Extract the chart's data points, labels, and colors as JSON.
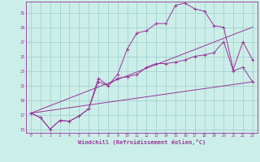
{
  "xlabel": "Windchill (Refroidissement éolien,°C)",
  "xlim": [
    -0.5,
    23.5
  ],
  "ylim": [
    14.5,
    32.5
  ],
  "xticks": [
    0,
    1,
    2,
    3,
    4,
    5,
    6,
    7,
    8,
    9,
    10,
    11,
    12,
    13,
    14,
    15,
    16,
    17,
    18,
    19,
    20,
    21,
    22,
    23
  ],
  "yticks": [
    15,
    17,
    19,
    21,
    23,
    25,
    27,
    29,
    31
  ],
  "bg_color": "#cceee8",
  "line_color": "#993399",
  "grid_color": "#99cccc",
  "line1_x": [
    0,
    1,
    2,
    3,
    4,
    5,
    6,
    7,
    8,
    9,
    10,
    11,
    12,
    13,
    14,
    15,
    16,
    17,
    18,
    19,
    20,
    21,
    22,
    23
  ],
  "line1_y": [
    17.2,
    16.6,
    15.0,
    16.2,
    16.1,
    16.8,
    17.8,
    21.5,
    21.0,
    22.5,
    26.0,
    28.2,
    28.5,
    29.5,
    29.5,
    32.0,
    32.3,
    31.5,
    31.2,
    29.2,
    29.0,
    23.2,
    27.0,
    24.5
  ],
  "line2_x": [
    0,
    1,
    2,
    3,
    4,
    5,
    6,
    7,
    8,
    9,
    10,
    11,
    12,
    13,
    14,
    15,
    16,
    17,
    18,
    19,
    20,
    21,
    22,
    23
  ],
  "line2_y": [
    17.2,
    16.6,
    15.0,
    16.2,
    16.1,
    16.8,
    17.8,
    22.0,
    21.0,
    22.0,
    22.2,
    22.5,
    23.5,
    24.0,
    24.0,
    24.2,
    24.5,
    25.0,
    25.2,
    25.5,
    27.0,
    23.0,
    23.5,
    21.5
  ],
  "line3_x": [
    0,
    23
  ],
  "line3_y": [
    17.2,
    29.0
  ],
  "line4_x": [
    0,
    23
  ],
  "line4_y": [
    17.2,
    21.5
  ]
}
